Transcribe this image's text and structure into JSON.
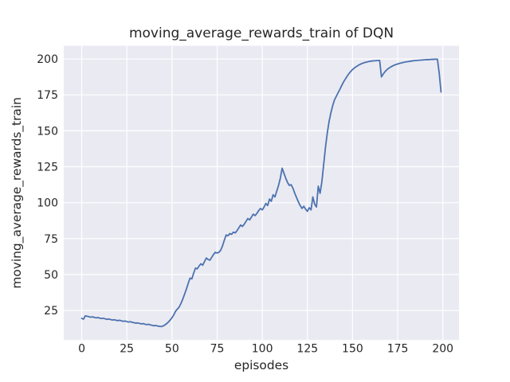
{
  "window": {
    "kind": "matplotlib-figure",
    "background": "#FFFFFF"
  },
  "chart_data": {
    "type": "line",
    "title": "moving_average_rewards_train of DQN",
    "xlabel": "episodes",
    "ylabel": "moving_average_rewards_train",
    "legend_position": "none",
    "grid": true,
    "x_ticks": [
      0,
      25,
      50,
      75,
      100,
      125,
      150,
      175,
      200
    ],
    "y_ticks": [
      25,
      50,
      75,
      100,
      125,
      150,
      175,
      200
    ],
    "xlim": [
      -9.95,
      208.95
    ],
    "ylim": [
      4.5,
      209.1
    ],
    "style": {
      "axes_background": "#EAEAF2",
      "grid_color": "#FFFFFF",
      "grid_width": 1.2,
      "line_color": "#4C72B0",
      "line_width": 1.8,
      "text_color": "#262626"
    },
    "series": [
      {
        "name": "moving_average_rewards_train",
        "x_start": 0,
        "x_step": 1,
        "y": [
          19.5,
          19.0,
          21.3,
          21.0,
          20.7,
          20.4,
          20.6,
          20.2,
          19.9,
          20.1,
          19.7,
          19.4,
          19.6,
          19.2,
          18.9,
          19.1,
          18.7,
          18.4,
          18.6,
          18.2,
          18.0,
          18.2,
          17.8,
          17.5,
          17.7,
          17.3,
          17.0,
          17.2,
          16.8,
          16.5,
          16.2,
          16.4,
          16.0,
          15.7,
          15.9,
          15.5,
          15.2,
          15.4,
          15.0,
          14.7,
          14.4,
          14.6,
          14.2,
          14.0,
          13.8,
          14.2,
          14.9,
          15.8,
          17.0,
          18.4,
          20.0,
          22.0,
          24.5,
          26.0,
          27.5,
          30.0,
          33.0,
          36.5,
          40.0,
          44.0,
          47.5,
          47.0,
          51.0,
          54.5,
          54.0,
          56.0,
          57.5,
          56.5,
          59.0,
          61.5,
          60.5,
          60.0,
          62.0,
          64.0,
          65.5,
          65.0,
          65.5,
          67.0,
          70.0,
          74.0,
          77.5,
          77.0,
          78.5,
          78.0,
          79.5,
          79.0,
          80.5,
          82.5,
          84.5,
          83.5,
          85.0,
          87.0,
          89.0,
          88.0,
          90.0,
          92.0,
          91.0,
          92.5,
          94.5,
          96.0,
          95.0,
          97.0,
          99.5,
          98.0,
          102.5,
          101.0,
          105.5,
          104.0,
          108.0,
          112.0,
          117.0,
          124.0,
          120.5,
          117.0,
          114.0,
          112.0,
          112.5,
          110.0,
          106.5,
          103.5,
          100.5,
          98.0,
          96.0,
          97.5,
          95.5,
          94.0,
          96.5,
          95.0,
          104.0,
          99.0,
          97.0,
          111.5,
          106.5,
          114.5,
          126.5,
          138.5,
          148.5,
          156.5,
          162.5,
          167.5,
          171.5,
          174.0,
          176.5,
          179.0,
          181.5,
          184.0,
          186.0,
          188.0,
          189.8,
          191.3,
          192.6,
          193.7,
          194.6,
          195.4,
          196.1,
          196.7,
          197.2,
          197.6,
          197.9,
          198.2,
          198.4,
          198.6,
          198.7,
          198.8,
          198.9,
          199.0,
          187.5,
          189.5,
          191.2,
          192.5,
          193.5,
          194.3,
          195.0,
          195.6,
          196.1,
          196.5,
          196.9,
          197.2,
          197.5,
          197.8,
          198.0,
          198.2,
          198.4,
          198.6,
          198.8,
          198.9,
          199.0,
          199.1,
          199.2,
          199.3,
          199.4,
          199.5,
          199.5,
          199.6,
          199.7,
          199.7,
          199.8,
          199.8,
          190.0,
          177.0
        ]
      }
    ]
  }
}
